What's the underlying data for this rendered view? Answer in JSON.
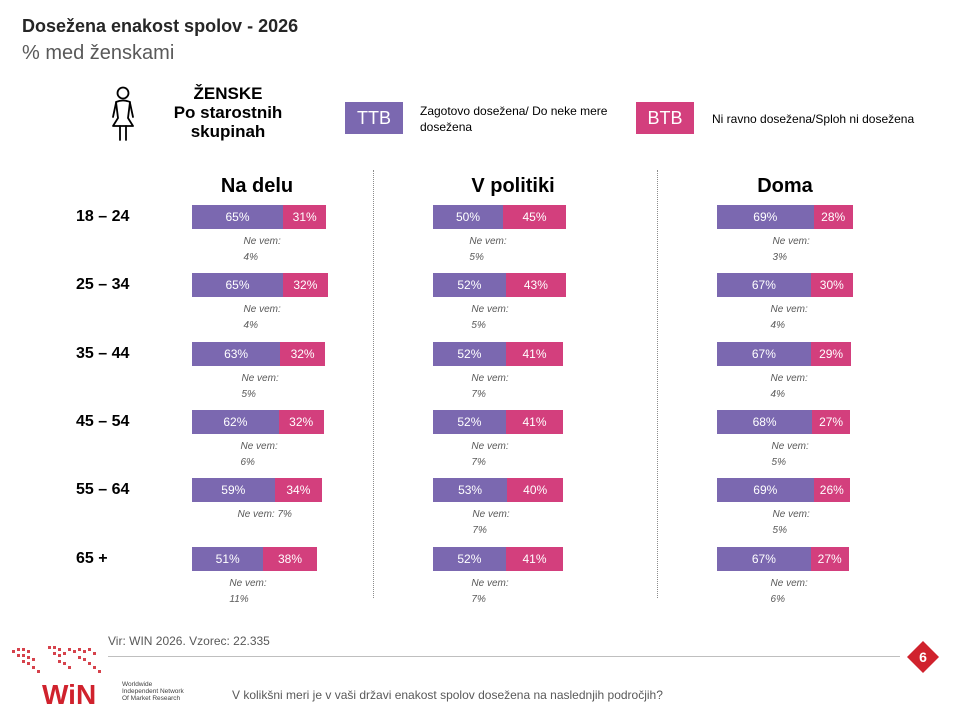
{
  "header": {
    "title": "Dosežena enakost spolov - 2026",
    "subtitle": "% med ženskami"
  },
  "segment": {
    "icon": "woman-icon",
    "label_lines": [
      "ŽENSKE",
      "Po starostnih",
      "skupinah"
    ]
  },
  "legend": {
    "ttb": {
      "label": "TTB",
      "text": "Zagotovo dosežena/ Do neke mere dosežena",
      "color": "#7b68b0"
    },
    "btb": {
      "label": "BTB",
      "text": "Ni ravno dosežena/Sploh ni dosežena",
      "color": "#d33f7d"
    }
  },
  "chart_data": {
    "type": "bar",
    "stacked": true,
    "orientation": "horizontal",
    "categories": [
      "18 – 24",
      "25 – 34",
      "35 – 44",
      "45 – 54",
      "55 – 64",
      "65 +"
    ],
    "dont_know_label": "Ne vem:",
    "panels": [
      {
        "title": "Na delu",
        "series": [
          {
            "name": "TTB",
            "values": [
              65,
              65,
              63,
              62,
              59,
              51
            ]
          },
          {
            "name": "BTB",
            "values": [
              31,
              32,
              32,
              32,
              34,
              38
            ]
          }
        ],
        "dont_know": [
          4,
          4,
          5,
          6,
          7,
          11
        ]
      },
      {
        "title": "V politiki",
        "series": [
          {
            "name": "TTB",
            "values": [
              50,
              52,
              52,
              52,
              53,
              52
            ]
          },
          {
            "name": "BTB",
            "values": [
              45,
              43,
              41,
              41,
              40,
              41
            ]
          }
        ],
        "dont_know": [
          5,
          5,
          7,
          7,
          7,
          7
        ]
      },
      {
        "title": "Doma",
        "series": [
          {
            "name": "TTB",
            "values": [
              69,
              67,
              67,
              68,
              69,
              67
            ]
          },
          {
            "name": "BTB",
            "values": [
              28,
              30,
              29,
              27,
              26,
              27
            ]
          }
        ],
        "dont_know": [
          3,
          4,
          4,
          5,
          5,
          6
        ]
      }
    ]
  },
  "footer": {
    "source": "Vir: WIN 2026.  Vzorec: 22.335",
    "page_number": "6",
    "question": "V kolikšni meri je v vaši državi enakost spolov dosežena na naslednjih področjih?",
    "logo_text": "WiN",
    "logo_tagline": [
      "Worldwide",
      "Independent Network",
      "Of Market Research"
    ]
  }
}
